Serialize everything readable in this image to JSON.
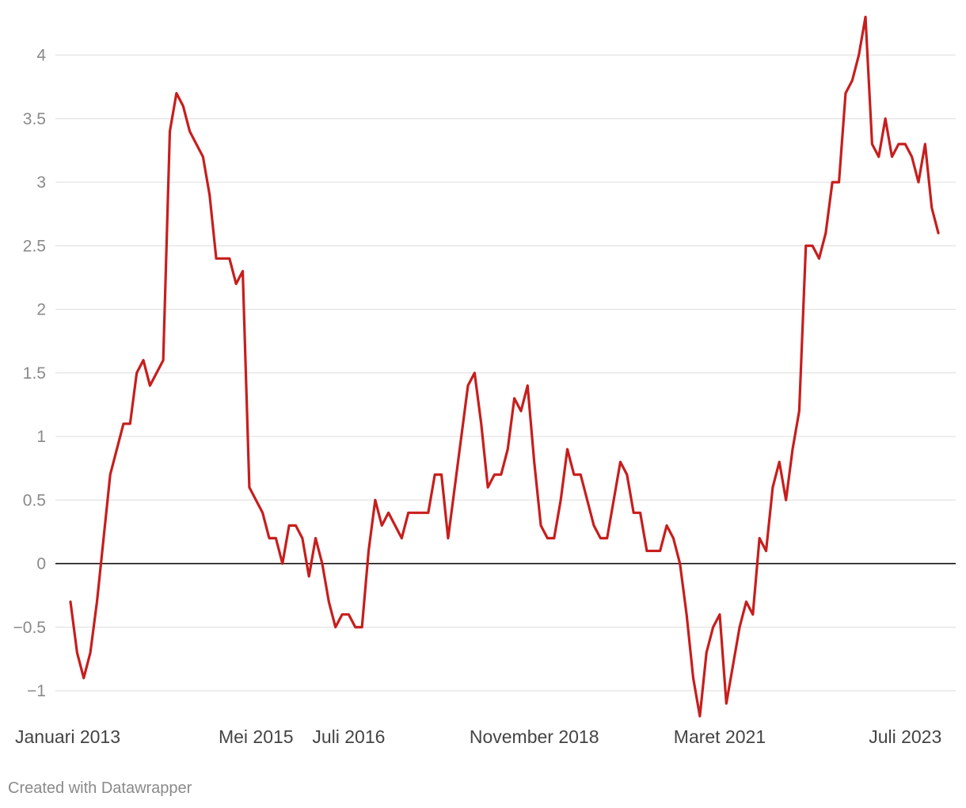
{
  "chart_data": {
    "type": "line",
    "title": "",
    "xlabel": "",
    "ylabel": "",
    "ylim": [
      -1.2,
      4.3
    ],
    "xlim": [
      "2013-01",
      "2023-12"
    ],
    "grid": true,
    "zero_line": true,
    "colors": {
      "line": "#c71e1d",
      "grid": "#e3e3e3",
      "zero": "#000000"
    },
    "y_ticks": [
      {
        "value": 4,
        "label": "4"
      },
      {
        "value": 3.5,
        "label": "3.5"
      },
      {
        "value": 3,
        "label": "3"
      },
      {
        "value": 2.5,
        "label": "2.5"
      },
      {
        "value": 2,
        "label": "2"
      },
      {
        "value": 1.5,
        "label": "1.5"
      },
      {
        "value": 1,
        "label": "1"
      },
      {
        "value": 0.5,
        "label": "0.5"
      },
      {
        "value": 0,
        "label": "0"
      },
      {
        "value": -0.5,
        "label": "−0.5"
      },
      {
        "value": -1,
        "label": "−1"
      }
    ],
    "x_ticks": [
      {
        "date": "2013-01",
        "label": "Januari 2013"
      },
      {
        "date": "2015-05",
        "label": "Mei 2015"
      },
      {
        "date": "2016-07",
        "label": "Juli 2016"
      },
      {
        "date": "2018-11",
        "label": "November 2018"
      },
      {
        "date": "2021-03",
        "label": "Maret 2021"
      },
      {
        "date": "2023-07",
        "label": "Juli 2023"
      }
    ],
    "series": [
      {
        "dates": [
          "2013-01",
          "2013-02",
          "2013-03",
          "2013-04",
          "2013-05",
          "2013-06",
          "2013-07",
          "2013-08",
          "2013-09",
          "2013-10",
          "2013-11",
          "2013-12",
          "2014-01",
          "2014-02",
          "2014-03",
          "2014-04",
          "2014-05",
          "2014-06",
          "2014-07",
          "2014-08",
          "2014-09",
          "2014-10",
          "2014-11",
          "2014-12",
          "2015-01",
          "2015-02",
          "2015-03",
          "2015-04",
          "2015-05",
          "2015-06",
          "2015-07",
          "2015-08",
          "2015-09",
          "2015-10",
          "2015-11",
          "2015-12",
          "2016-01",
          "2016-02",
          "2016-03",
          "2016-04",
          "2016-05",
          "2016-06",
          "2016-07",
          "2016-08",
          "2016-09",
          "2016-10",
          "2016-11",
          "2016-12",
          "2017-01",
          "2017-02",
          "2017-03",
          "2017-04",
          "2017-05",
          "2017-06",
          "2017-07",
          "2017-08",
          "2017-09",
          "2017-10",
          "2017-11",
          "2017-12",
          "2018-01",
          "2018-02",
          "2018-03",
          "2018-04",
          "2018-05",
          "2018-06",
          "2018-07",
          "2018-08",
          "2018-09",
          "2018-10",
          "2018-11",
          "2018-12",
          "2019-01",
          "2019-02",
          "2019-03",
          "2019-04",
          "2019-05",
          "2019-06",
          "2019-07",
          "2019-08",
          "2019-09",
          "2019-10",
          "2019-11",
          "2019-12",
          "2020-01",
          "2020-02",
          "2020-03",
          "2020-04",
          "2020-05",
          "2020-06",
          "2020-07",
          "2020-08",
          "2020-09",
          "2020-10",
          "2020-11",
          "2020-12",
          "2021-01",
          "2021-02",
          "2021-03",
          "2021-04",
          "2021-05",
          "2021-06",
          "2021-07",
          "2021-08",
          "2021-09",
          "2021-10",
          "2021-11",
          "2021-12",
          "2022-01",
          "2022-02",
          "2022-03",
          "2022-04",
          "2022-05",
          "2022-06",
          "2022-07",
          "2022-08",
          "2022-09",
          "2022-10",
          "2022-11",
          "2022-12",
          "2023-01",
          "2023-02",
          "2023-03",
          "2023-04",
          "2023-05",
          "2023-06",
          "2023-07",
          "2023-08",
          "2023-09",
          "2023-10",
          "2023-11",
          "2023-12"
        ],
        "values": [
          -0.3,
          -0.7,
          -0.9,
          -0.7,
          -0.3,
          0.2,
          0.7,
          0.9,
          1.1,
          1.1,
          1.5,
          1.6,
          1.4,
          1.5,
          1.6,
          3.4,
          3.7,
          3.6,
          3.4,
          3.3,
          3.2,
          2.9,
          2.4,
          2.4,
          2.4,
          2.2,
          2.3,
          0.6,
          0.5,
          0.4,
          0.2,
          0.2,
          0.0,
          0.3,
          0.3,
          0.2,
          -0.1,
          0.2,
          0.0,
          -0.3,
          -0.5,
          -0.4,
          -0.4,
          -0.5,
          -0.5,
          0.1,
          0.5,
          0.3,
          0.4,
          0.3,
          0.2,
          0.4,
          0.4,
          0.4,
          0.4,
          0.7,
          0.7,
          0.2,
          0.6,
          1.0,
          1.4,
          1.5,
          1.1,
          0.6,
          0.7,
          0.7,
          0.9,
          1.3,
          1.2,
          1.4,
          0.8,
          0.3,
          0.2,
          0.2,
          0.5,
          0.9,
          0.7,
          0.7,
          0.5,
          0.3,
          0.2,
          0.2,
          0.5,
          0.8,
          0.7,
          0.4,
          0.4,
          0.1,
          0.1,
          0.1,
          0.3,
          0.2,
          0.0,
          -0.4,
          -0.9,
          -1.2,
          -0.7,
          -0.5,
          -0.4,
          -1.1,
          -0.8,
          -0.5,
          -0.3,
          -0.4,
          0.2,
          0.1,
          0.6,
          0.8,
          0.5,
          0.9,
          1.2,
          2.5,
          2.5,
          2.4,
          2.6,
          3.0,
          3.0,
          3.7,
          3.8,
          4.0,
          4.3,
          3.3,
          3.2,
          3.5,
          3.2,
          3.3,
          3.3,
          3.2,
          3.0,
          3.3,
          2.8,
          2.6
        ]
      }
    ]
  },
  "footer": {
    "credit": "Created with Datawrapper"
  }
}
